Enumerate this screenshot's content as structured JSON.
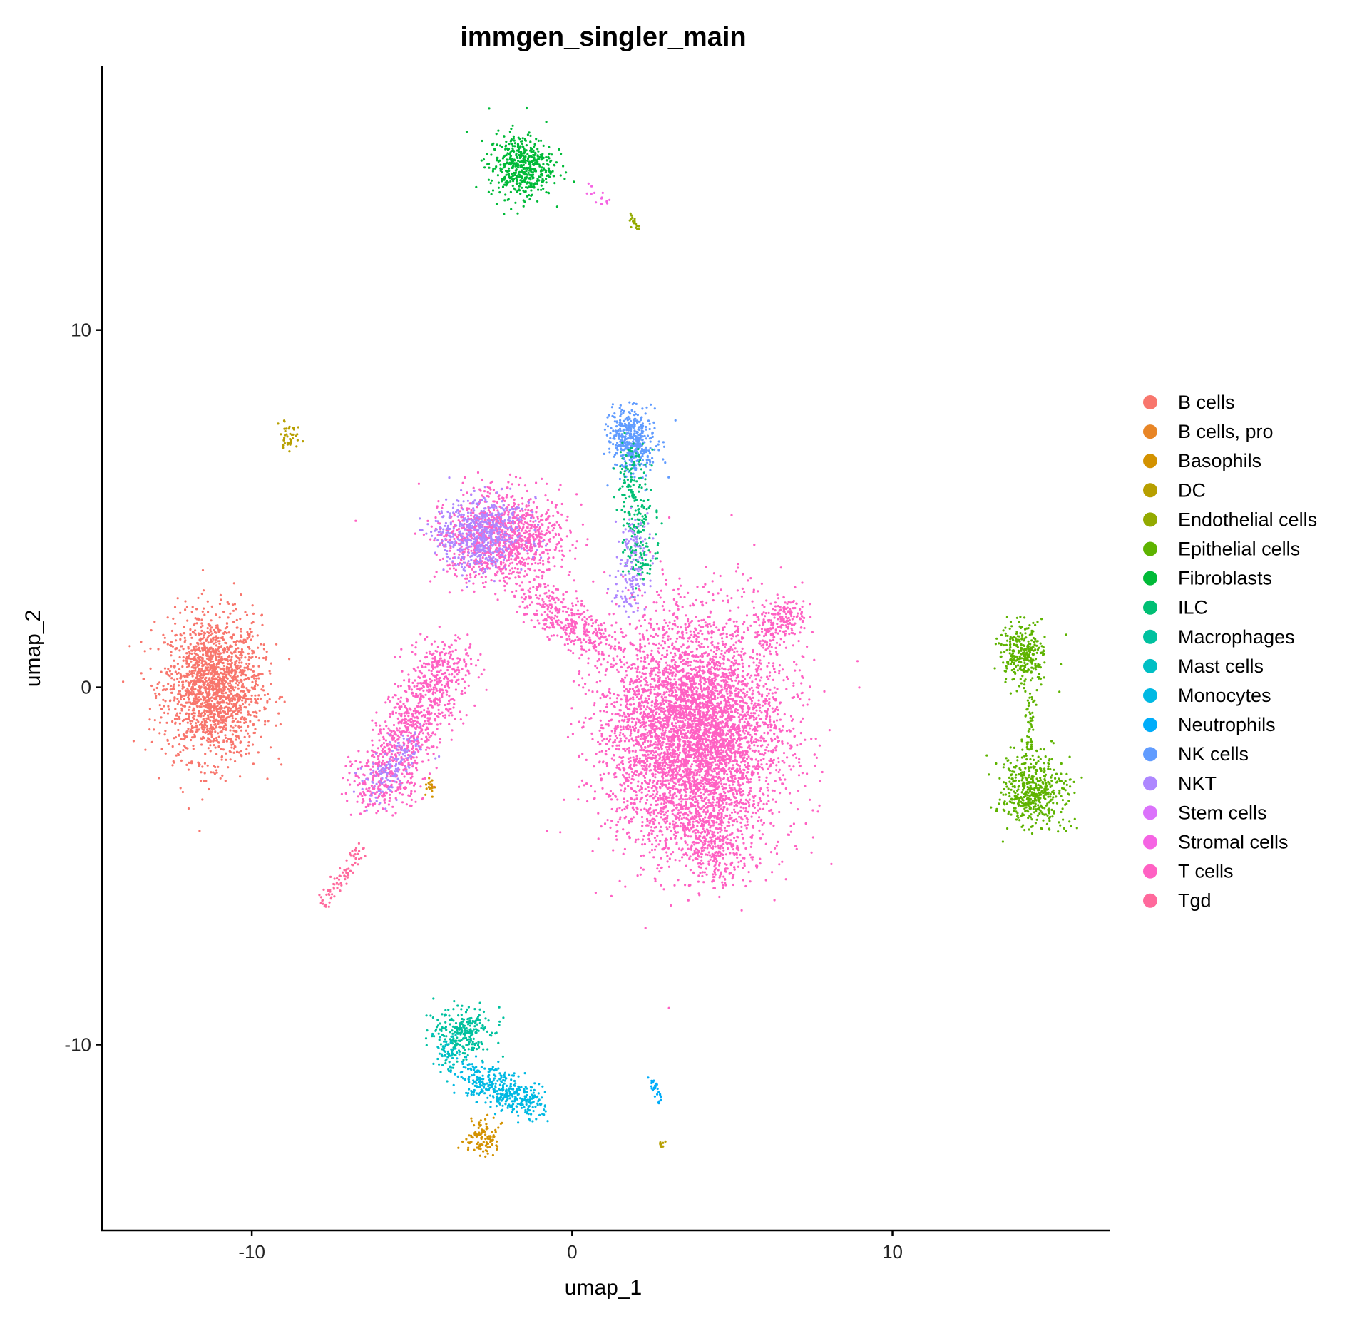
{
  "chart_data": {
    "type": "scatter",
    "title": "immgen_singler_main",
    "xlabel": "umap_1",
    "ylabel": "umap_2",
    "xlim": [
      -14.7,
      16.8
    ],
    "ylim": [
      -15.2,
      17.4
    ],
    "xticks": [
      "-10",
      "0",
      "10"
    ],
    "yticks": [
      "-10",
      "0",
      "10"
    ],
    "grid": false,
    "legend_position": "right",
    "legend": [
      {
        "label": "B cells",
        "color": "#F8766D"
      },
      {
        "label": "B cells, pro",
        "color": "#E88526"
      },
      {
        "label": "Basophils",
        "color": "#D39200"
      },
      {
        "label": "DC",
        "color": "#B79F00"
      },
      {
        "label": "Endothelial cells",
        "color": "#93AA00"
      },
      {
        "label": "Epithelial cells",
        "color": "#5EB300"
      },
      {
        "label": "Fibroblasts",
        "color": "#00BA38"
      },
      {
        "label": "ILC",
        "color": "#00BF74"
      },
      {
        "label": "Macrophages",
        "color": "#00C19F"
      },
      {
        "label": "Mast cells",
        "color": "#00BFC4"
      },
      {
        "label": "Monocytes",
        "color": "#00B9E3"
      },
      {
        "label": "Neutrophils",
        "color": "#00ADFA"
      },
      {
        "label": "NK cells",
        "color": "#619CFF"
      },
      {
        "label": "NKT",
        "color": "#AE87FF"
      },
      {
        "label": "Stem cells",
        "color": "#DB72FB"
      },
      {
        "label": "Stromal cells",
        "color": "#F564E3"
      },
      {
        "label": "T cells",
        "color": "#FF61C3"
      },
      {
        "label": "Tgd",
        "color": "#FF699C"
      }
    ],
    "clusters": [
      {
        "label": "B cells",
        "center": [
          -11.2,
          0.0
        ],
        "sd": [
          0.75,
          1.0
        ],
        "n": 1800
      },
      {
        "label": "Fibroblasts",
        "center": [
          -1.6,
          14.6
        ],
        "sd": [
          0.5,
          0.45
        ],
        "n": 500
      },
      {
        "label": "Stromal cells",
        "from": [
          0.5,
          14.0
        ],
        "to": [
          1.2,
          13.4
        ],
        "sd": [
          0.1,
          0.1
        ],
        "n": 15
      },
      {
        "label": "Endothelial cells",
        "from": [
          1.8,
          13.2
        ],
        "to": [
          2.1,
          12.8
        ],
        "sd": [
          0.06,
          0.06
        ],
        "n": 20
      },
      {
        "label": "DC",
        "center": [
          -8.9,
          7.0
        ],
        "sd": [
          0.15,
          0.2
        ],
        "n": 40
      },
      {
        "label": "T cells",
        "center": [
          3.8,
          -1.3
        ],
        "sd": [
          1.35,
          1.6
        ],
        "n": 5200
      },
      {
        "label": "T cells",
        "from": [
          4.0,
          -3.5
        ],
        "to": [
          4.8,
          -5.3
        ],
        "sd": [
          0.5,
          0.3
        ],
        "n": 300
      },
      {
        "label": "T cells",
        "from": [
          6.0,
          1.5
        ],
        "to": [
          7.0,
          2.2
        ],
        "sd": [
          0.3,
          0.3
        ],
        "n": 200
      },
      {
        "label": "T cells",
        "center": [
          -2.2,
          4.2
        ],
        "sd": [
          0.95,
          0.6
        ],
        "n": 1100
      },
      {
        "label": "NKT",
        "center": [
          -2.9,
          4.3
        ],
        "sd": [
          0.7,
          0.5
        ],
        "n": 600
      },
      {
        "label": "T cells",
        "from": [
          -1.4,
          2.5
        ],
        "to": [
          1.0,
          1.3
        ],
        "sd": [
          0.35,
          0.35
        ],
        "n": 350
      },
      {
        "label": "NK cells",
        "center": [
          1.9,
          6.9
        ],
        "sd": [
          0.35,
          0.45
        ],
        "n": 450
      },
      {
        "label": "ILC",
        "from": [
          1.8,
          6.5
        ],
        "to": [
          2.2,
          3.2
        ],
        "sd": [
          0.25,
          0.3
        ],
        "n": 250
      },
      {
        "label": "NKT",
        "from": [
          2.0,
          4.5
        ],
        "to": [
          1.7,
          2.3
        ],
        "sd": [
          0.25,
          0.3
        ],
        "n": 150
      },
      {
        "label": "T cells",
        "from": [
          -3.8,
          1.0
        ],
        "to": [
          -6.2,
          -3.2
        ],
        "sd": [
          0.55,
          0.35
        ],
        "n": 1000
      },
      {
        "label": "NKT",
        "from": [
          -5.0,
          -1.5
        ],
        "to": [
          -6.2,
          -3.0
        ],
        "sd": [
          0.3,
          0.25
        ],
        "n": 150
      },
      {
        "label": "Tgd",
        "from": [
          -6.6,
          -4.4
        ],
        "to": [
          -7.8,
          -6.2
        ],
        "sd": [
          0.1,
          0.1
        ],
        "n": 80
      },
      {
        "label": "Epithelial cells",
        "center": [
          14.1,
          0.9
        ],
        "sd": [
          0.35,
          0.45
        ],
        "n": 300
      },
      {
        "label": "Epithelial cells",
        "from": [
          14.3,
          -0.3
        ],
        "to": [
          14.3,
          -1.8
        ],
        "sd": [
          0.08,
          0.15
        ],
        "n": 50
      },
      {
        "label": "Epithelial cells",
        "center": [
          14.4,
          -2.9
        ],
        "sd": [
          0.5,
          0.5
        ],
        "n": 500
      },
      {
        "label": "Macrophages",
        "center": [
          -3.4,
          -9.7
        ],
        "sd": [
          0.45,
          0.35
        ],
        "n": 260
      },
      {
        "label": "Mast cells",
        "center": [
          -3.9,
          -10.3
        ],
        "sd": [
          0.2,
          0.3
        ],
        "n": 60
      },
      {
        "label": "Monocytes",
        "from": [
          -3.2,
          -10.8
        ],
        "to": [
          -1.2,
          -11.7
        ],
        "sd": [
          0.35,
          0.25
        ],
        "n": 380
      },
      {
        "label": "Basophils",
        "center": [
          -2.8,
          -12.6
        ],
        "sd": [
          0.25,
          0.25
        ],
        "n": 110
      },
      {
        "label": "Basophils",
        "center": [
          -4.4,
          -2.8
        ],
        "sd": [
          0.08,
          0.15
        ],
        "n": 20
      },
      {
        "label": "Neutrophils",
        "from": [
          2.5,
          -11.0
        ],
        "to": [
          2.75,
          -11.6
        ],
        "sd": [
          0.05,
          0.05
        ],
        "n": 30
      },
      {
        "label": "DC",
        "center": [
          2.8,
          -12.8
        ],
        "sd": [
          0.05,
          0.05
        ],
        "n": 12
      }
    ]
  }
}
